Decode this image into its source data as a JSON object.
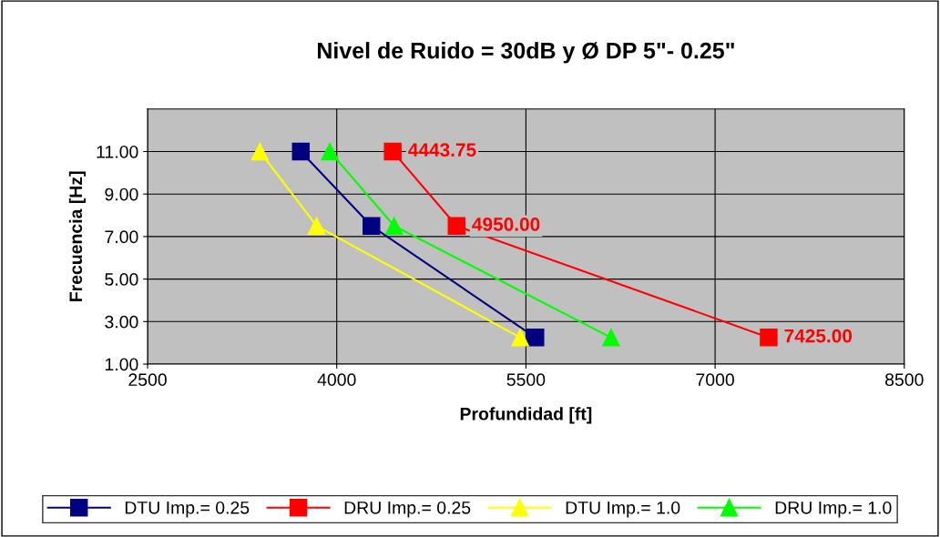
{
  "chart_data": {
    "type": "line",
    "title": "Nivel de Ruido = 30dB y Ø DP 5\"- 0.25\"",
    "xlabel": "Profundidad [ft]",
    "ylabel": "Frecuencia [Hz]",
    "xlim": [
      2500,
      8500
    ],
    "xticks": [
      2500,
      4000,
      5500,
      7000,
      8500
    ],
    "ylim": [
      1,
      13
    ],
    "yticks": [
      {
        "value": 1,
        "label": "1.00"
      },
      {
        "value": 3,
        "label": "3.00"
      },
      {
        "value": 5,
        "label": "5.00"
      },
      {
        "value": 7,
        "label": "7.00"
      },
      {
        "value": 9,
        "label": "9.00"
      },
      {
        "value": 11,
        "label": "11.00"
      }
    ],
    "grid": true,
    "legend": "bottom",
    "annotations": [
      {
        "text": "4443.75",
        "x": 4443.75,
        "y": 11
      },
      {
        "text": "4950.00",
        "x": 4950,
        "y": 7.5
      },
      {
        "text": "7425.00",
        "x": 7425,
        "y": 2.25
      }
    ],
    "series": [
      {
        "name": "DTU Imp.= 0.25",
        "color": "#000080",
        "marker": "square",
        "x": [
          3715,
          4275,
          5575
        ],
        "values": [
          11,
          7.5,
          2.25
        ]
      },
      {
        "name": "DRU Imp.= 0.25",
        "color": "#ff0000",
        "marker": "square",
        "x": [
          4443.75,
          4950,
          7425
        ],
        "values": [
          11,
          7.5,
          2.25
        ]
      },
      {
        "name": "DTU Imp.= 1.0",
        "color": "#ffff00",
        "marker": "triangle",
        "x": [
          3390,
          3840,
          5455
        ],
        "values": [
          11,
          7.5,
          2.25
        ]
      },
      {
        "name": "DRU Imp.= 1.0",
        "color": "#00ff00",
        "marker": "triangle",
        "x": [
          3945,
          4455,
          6175
        ],
        "values": [
          11,
          7.5,
          2.25
        ]
      }
    ]
  }
}
